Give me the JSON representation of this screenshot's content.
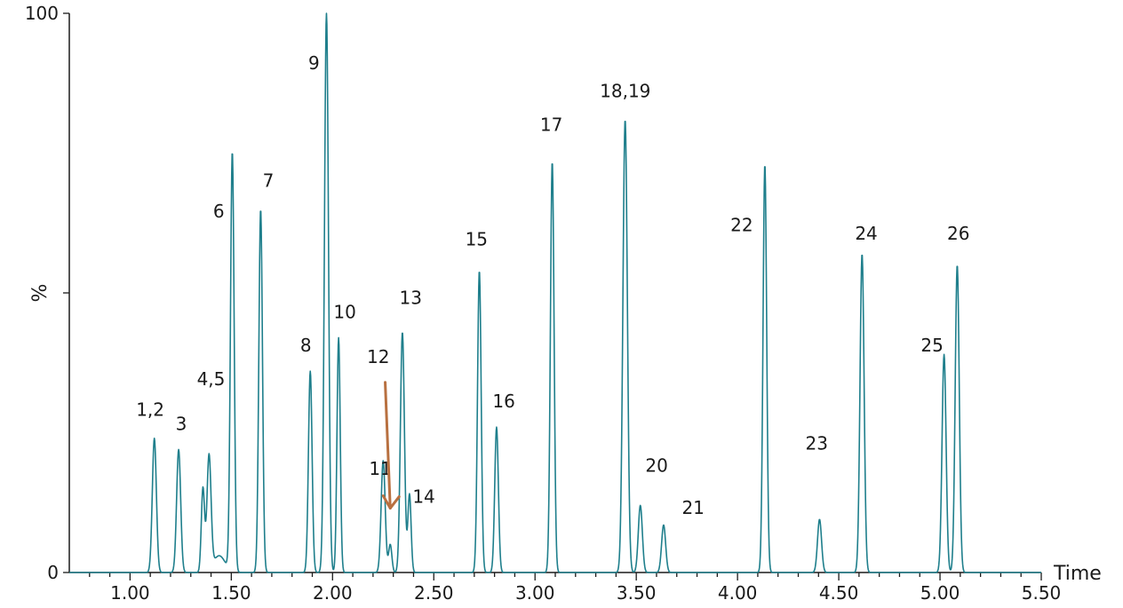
{
  "chart_data": {
    "type": "line",
    "title": "",
    "xlabel": "Time",
    "ylabel": "%",
    "xlim": [
      0.7,
      5.5
    ],
    "ylim": [
      0,
      100
    ],
    "x_ticks_major": [
      "1.00",
      "1.50",
      "2.00",
      "2.50",
      "3.00",
      "3.50",
      "4.00",
      "4.50",
      "5.00",
      "5.50"
    ],
    "x_ticks_minor_step": 0.1,
    "y_ticks": [
      "0",
      "100"
    ],
    "y_tick_mid": 50,
    "grid": false,
    "line_color": "#1f7f8c",
    "annotation_arrow_color": "#b87040",
    "peaks": [
      {
        "x": 1.12,
        "y": 24,
        "w": 0.01
      },
      {
        "x": 1.24,
        "y": 22,
        "w": 0.01
      },
      {
        "x": 1.36,
        "y": 15,
        "w": 0.008
      },
      {
        "x": 1.39,
        "y": 20.5,
        "w": 0.01
      },
      {
        "x": 1.44,
        "y": 3,
        "w": 0.03
      },
      {
        "x": 1.505,
        "y": 75,
        "w": 0.009
      },
      {
        "x": 1.645,
        "y": 65,
        "w": 0.009
      },
      {
        "x": 1.89,
        "y": 36,
        "w": 0.009
      },
      {
        "x": 1.97,
        "y": 100,
        "w": 0.01
      },
      {
        "x": 2.03,
        "y": 42,
        "w": 0.008
      },
      {
        "x": 2.25,
        "y": 20,
        "w": 0.01
      },
      {
        "x": 2.285,
        "y": 5,
        "w": 0.008
      },
      {
        "x": 2.345,
        "y": 43,
        "w": 0.01
      },
      {
        "x": 2.38,
        "y": 14,
        "w": 0.008
      },
      {
        "x": 2.725,
        "y": 54,
        "w": 0.009
      },
      {
        "x": 2.81,
        "y": 26,
        "w": 0.009
      },
      {
        "x": 3.085,
        "y": 73.5,
        "w": 0.009
      },
      {
        "x": 3.445,
        "y": 81,
        "w": 0.011
      },
      {
        "x": 3.52,
        "y": 12,
        "w": 0.01
      },
      {
        "x": 3.635,
        "y": 8.5,
        "w": 0.01
      },
      {
        "x": 4.135,
        "y": 73,
        "w": 0.009
      },
      {
        "x": 4.405,
        "y": 9.5,
        "w": 0.01
      },
      {
        "x": 4.615,
        "y": 57,
        "w": 0.01
      },
      {
        "x": 5.02,
        "y": 39,
        "w": 0.01
      },
      {
        "x": 5.085,
        "y": 55,
        "w": 0.01
      }
    ],
    "annotations": [
      {
        "text": "1,2",
        "x": 1.03,
        "y": 28
      },
      {
        "text": "3",
        "x": 1.225,
        "y": 25.5
      },
      {
        "text": "4,5",
        "x": 1.33,
        "y": 33.5
      },
      {
        "text": "6",
        "x": 1.41,
        "y": 63.5
      },
      {
        "text": "7",
        "x": 1.655,
        "y": 69
      },
      {
        "text": "8",
        "x": 1.84,
        "y": 39.5
      },
      {
        "text": "9",
        "x": 1.88,
        "y": 90
      },
      {
        "text": "10",
        "x": 2.005,
        "y": 45.5
      },
      {
        "text": "11",
        "x": 2.18,
        "y": 17.5
      },
      {
        "text": "12",
        "x": 2.17,
        "y": 37.5
      },
      {
        "text": "13",
        "x": 2.33,
        "y": 48
      },
      {
        "text": "14",
        "x": 2.395,
        "y": 12.5
      },
      {
        "text": "15",
        "x": 2.655,
        "y": 58.5
      },
      {
        "text": "16",
        "x": 2.79,
        "y": 29.5
      },
      {
        "text": "17",
        "x": 3.025,
        "y": 79
      },
      {
        "text": "18,19",
        "x": 3.32,
        "y": 85
      },
      {
        "text": "20",
        "x": 3.545,
        "y": 18
      },
      {
        "text": "21",
        "x": 3.725,
        "y": 10.5
      },
      {
        "text": "22",
        "x": 3.965,
        "y": 61
      },
      {
        "text": "23",
        "x": 4.335,
        "y": 22
      },
      {
        "text": "24",
        "x": 4.58,
        "y": 59.5
      },
      {
        "text": "25",
        "x": 4.905,
        "y": 39.5
      },
      {
        "text": "26",
        "x": 5.035,
        "y": 59.5
      }
    ]
  }
}
